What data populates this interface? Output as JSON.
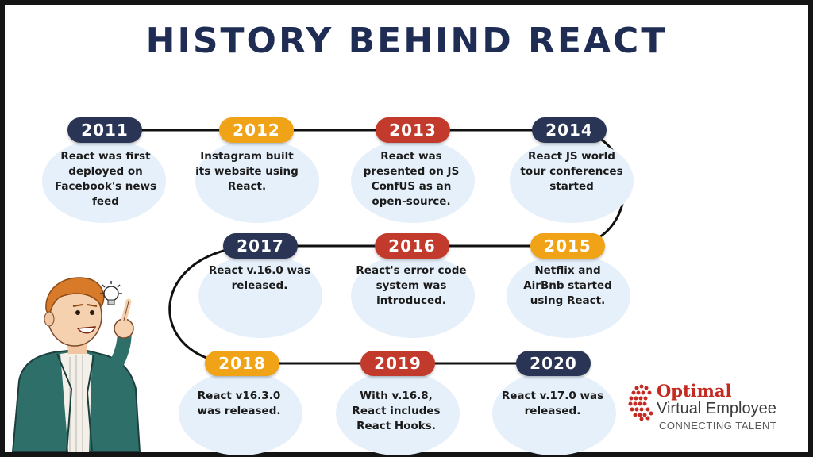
{
  "title": "HISTORY BEHIND REACT",
  "colors": {
    "navy": "#2a3556",
    "gold": "#f0a317",
    "red": "#c23a2c",
    "bubble": "#e6f0fa"
  },
  "timeline": [
    {
      "year": "2011",
      "text": "React was first deployed on Facebook's news feed"
    },
    {
      "year": "2012",
      "text": "Instagram built its website using React."
    },
    {
      "year": "2013",
      "text": "React was presented on JS ConfUS as an open-source."
    },
    {
      "year": "2014",
      "text": "React JS world tour conferences started"
    },
    {
      "year": "2015",
      "text": "Netflix and AirBnb started using React."
    },
    {
      "year": "2016",
      "text": "React's error code system was introduced."
    },
    {
      "year": "2017",
      "text": "React v.16.0 was released."
    },
    {
      "year": "2018",
      "text": "React v16.3.0 was released."
    },
    {
      "year": "2019",
      "text": "With v.16.8, React includes React Hooks."
    },
    {
      "year": "2020",
      "text": "React v.17.0 was released."
    }
  ],
  "logo": {
    "name": "Optimal",
    "subtitle": "Virtual Employee",
    "tagline": "CONNECTING TALENT"
  },
  "illustration": {
    "figure": "pointing-man-illustration",
    "bulb": "lightbulb-icon"
  }
}
